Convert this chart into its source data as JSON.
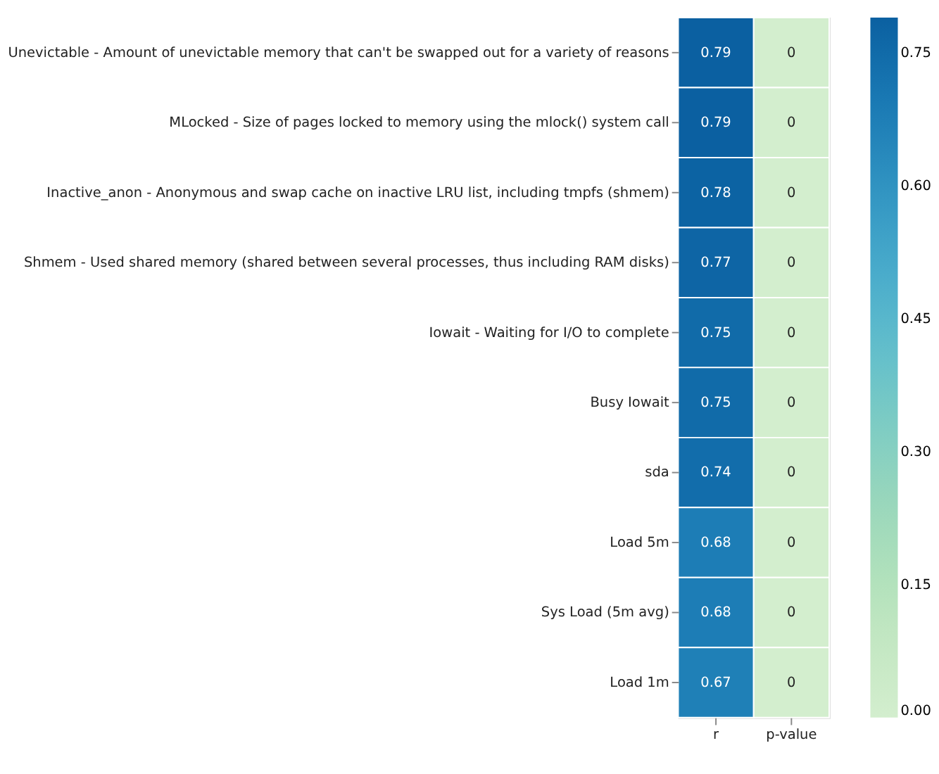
{
  "chart_data": {
    "type": "heatmap",
    "categories": [
      "r",
      "p-value"
    ],
    "y_categories": [
      "Unevictable - Amount of unevictable memory that can't be swapped out for a variety of reasons",
      "MLocked - Size of pages locked to memory using the mlock() system call",
      "Inactive_anon - Anonymous and swap cache on inactive LRU list, including tmpfs (shmem)",
      "Shmem - Used shared memory (shared between several processes, thus including RAM disks)",
      "Iowait - Waiting for I/O to complete",
      "Busy Iowait",
      "sda",
      "Load 5m",
      "Sys Load (5m avg)",
      "Load 1m"
    ],
    "cells": [
      [
        0.79,
        0
      ],
      [
        0.79,
        0
      ],
      [
        0.78,
        0
      ],
      [
        0.77,
        0
      ],
      [
        0.75,
        0
      ],
      [
        0.75,
        0
      ],
      [
        0.74,
        0
      ],
      [
        0.68,
        0
      ],
      [
        0.68,
        0
      ],
      [
        0.67,
        0
      ]
    ],
    "data_labels": true,
    "clim": [
      0,
      0.79
    ],
    "cticks": [
      {
        "value": 0,
        "label": "0.00"
      },
      {
        "value": 0.15,
        "label": "0.15"
      },
      {
        "value": 0.3,
        "label": "0.30"
      },
      {
        "value": 0.45,
        "label": "0.45"
      },
      {
        "value": 0.6,
        "label": "0.60"
      },
      {
        "value": 0.75,
        "label": "0.75"
      }
    ]
  }
}
